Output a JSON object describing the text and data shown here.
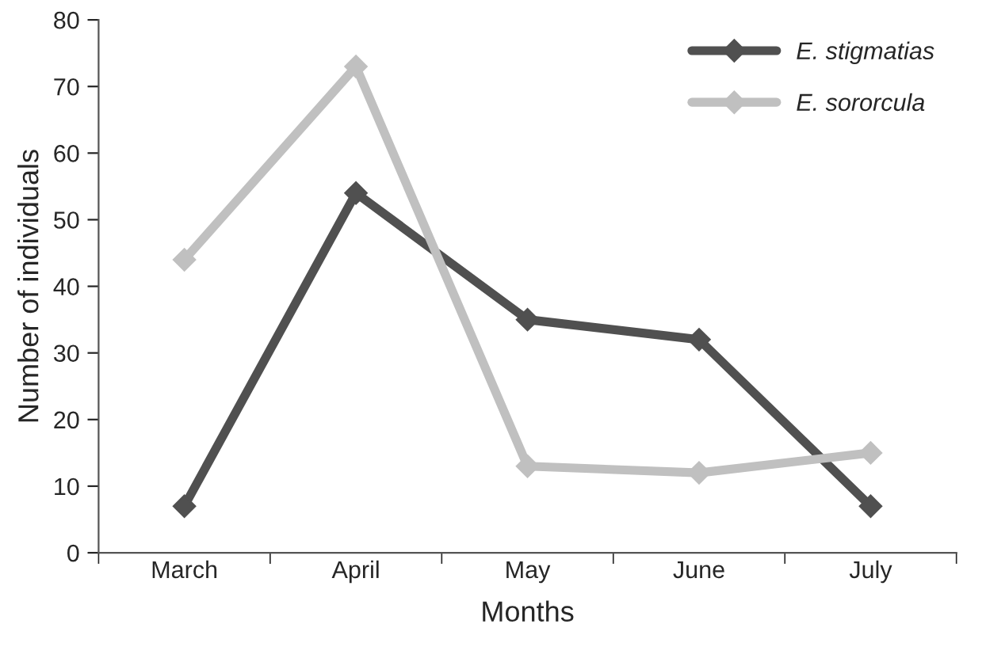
{
  "chart_data": {
    "type": "line",
    "xlabel": "Months",
    "ylabel": "Number of individuals",
    "categories": [
      "March",
      "April",
      "May",
      "June",
      "July"
    ],
    "series": [
      {
        "name": "E. stigmatias",
        "color": "#505050",
        "values": [
          7,
          54,
          35,
          32,
          7
        ]
      },
      {
        "name": "E. sororcula",
        "color": "#c0c0c0",
        "values": [
          44,
          73,
          13,
          12,
          15
        ]
      }
    ],
    "ylim": [
      0,
      80
    ],
    "yticks": [
      0,
      10,
      20,
      30,
      40,
      50,
      60,
      70,
      80
    ],
    "grid": false,
    "legend": "top right",
    "marker": "diamond",
    "line_style": "solid"
  }
}
